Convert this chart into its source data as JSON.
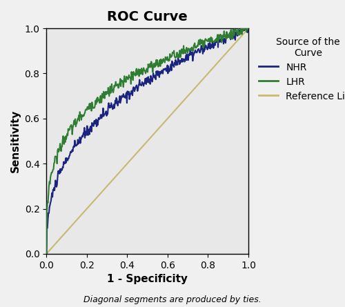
{
  "title": "ROC Curve",
  "xlabel": "1 - Specificity",
  "ylabel": "Sensitivity",
  "footnote": "Diagonal segments are produced by ties.",
  "xlim": [
    0.0,
    1.0
  ],
  "ylim": [
    0.0,
    1.0
  ],
  "xticks": [
    0.0,
    0.2,
    0.4,
    0.6,
    0.8,
    1.0
  ],
  "yticks": [
    0.0,
    0.2,
    0.4,
    0.6,
    0.8,
    1.0
  ],
  "background_color": "#e8e8e8",
  "plot_bg_color": "#e8e8e8",
  "NHR_color": "#1a237e",
  "LHR_color": "#2e7d32",
  "ref_color": "#c8b870",
  "legend_title": "Source of the\nCurve",
  "legend_labels": [
    "NHR",
    "LHR",
    "Reference Line"
  ],
  "title_fontsize": 14,
  "axis_label_fontsize": 11,
  "tick_fontsize": 10,
  "legend_fontsize": 10,
  "footnote_fontsize": 9
}
